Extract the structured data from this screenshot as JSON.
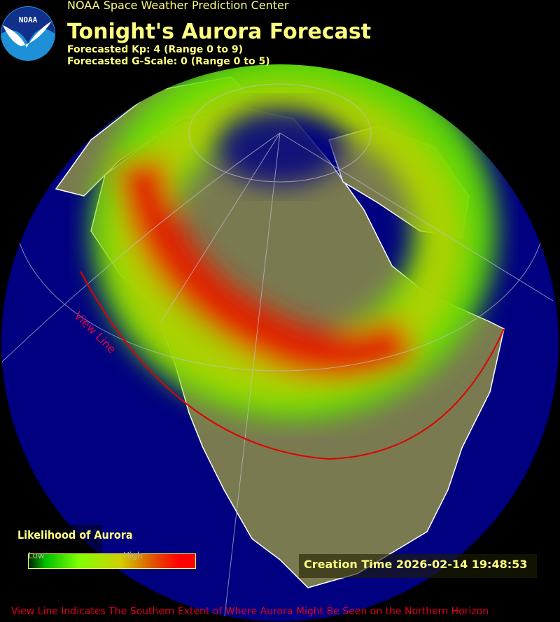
{
  "header": {
    "logo_text": "NOAA",
    "organization": "NOAA Space Weather Prediction Center",
    "title": "Tonight's Aurora Forecast",
    "kp_line": "Forecasted Kp: 4 (Range 0 to 9)",
    "gscale_line": "Forecasted G-Scale: 0 (Range 0 to 5)"
  },
  "forecast": {
    "kp": 4,
    "kp_range": [
      0,
      9
    ],
    "g_scale": 0,
    "g_scale_range": [
      0,
      5
    ]
  },
  "map": {
    "view_line_label": "View Line",
    "colors": {
      "ocean": "#000080",
      "land": "#7a7a50",
      "view_line": "#e00000",
      "low": "#00c000",
      "mid": "#c0e000",
      "high": "#ff0000"
    }
  },
  "legend": {
    "title": "Likelihood of Aurora",
    "low_label": "Low",
    "high_label": "High"
  },
  "creation_time": "Creation Time 2026-02-14 19:48:53",
  "footer": "View Line Indicates The Southern Extent of Where Aurora Might Be Seen on the Northern Horizon"
}
